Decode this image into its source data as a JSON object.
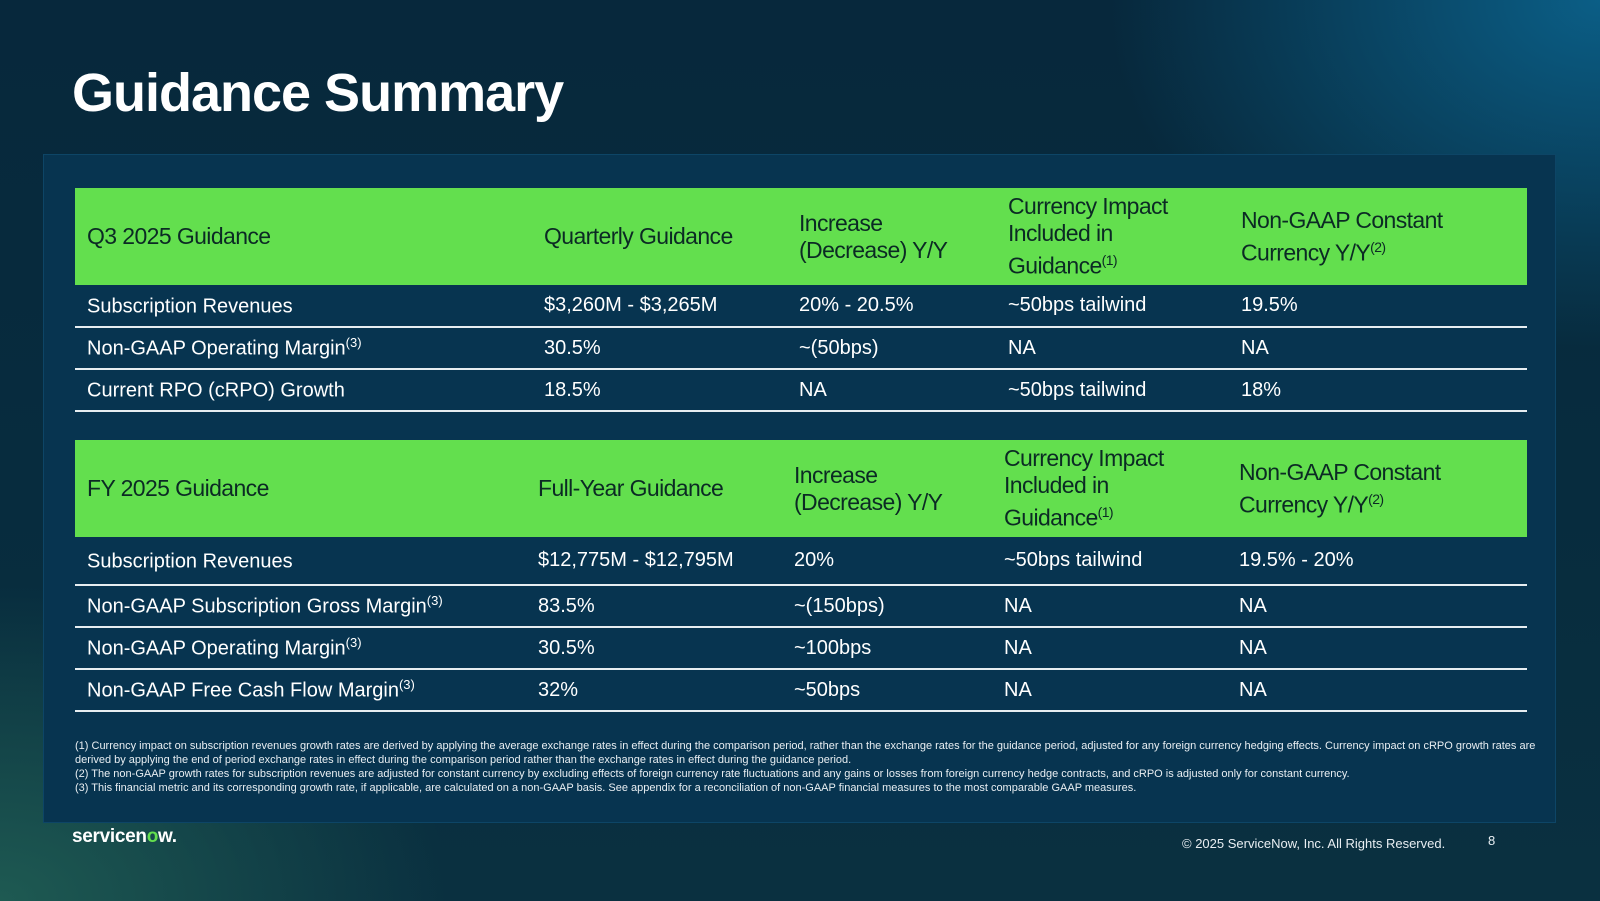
{
  "page": {
    "title": "Guidance Summary",
    "copyright": "© 2025 ServiceNow, Inc. All Rights Reserved.",
    "page_number": "8",
    "logo": {
      "pre": "servicen",
      "accent": "o",
      "post": "w."
    }
  },
  "q3": {
    "headers": [
      "Q3 2025 Guidance",
      "Quarterly Guidance",
      "Increase (Decrease) Y/Y",
      "Currency Impact Included in Guidance",
      "Non-GAAP Constant Currency Y/Y"
    ],
    "header_sups": [
      "",
      "",
      "",
      "(1)",
      "(2)"
    ],
    "rows": [
      {
        "label": "Subscription Revenues",
        "sup": "",
        "values": [
          "$3,260M - $3,265M",
          "20% - 20.5%",
          "~50bps tailwind",
          "19.5%"
        ]
      },
      {
        "label": "Non-GAAP Operating Margin",
        "sup": "(3)",
        "values": [
          "30.5%",
          "~(50bps)",
          "NA",
          "NA"
        ]
      },
      {
        "label": "Current RPO (cRPO) Growth",
        "sup": "",
        "values": [
          "18.5%",
          "NA",
          "~50bps tailwind",
          "18%"
        ]
      }
    ]
  },
  "fy": {
    "headers": [
      "FY 2025 Guidance",
      "Full-Year Guidance",
      "Increase (Decrease) Y/Y",
      "Currency Impact Included in Guidance",
      "Non-GAAP Constant Currency Y/Y"
    ],
    "header_sups": [
      "",
      "",
      "",
      "(1)",
      "(2)"
    ],
    "rows": [
      {
        "label": "Subscription Revenues",
        "sup": "",
        "values": [
          "$12,775M - $12,795M",
          "20%",
          "~50bps tailwind",
          "19.5% - 20%"
        ]
      },
      {
        "label": "Non-GAAP Subscription Gross Margin",
        "sup": "(3)",
        "values": [
          "83.5%",
          "~(150bps)",
          "NA",
          "NA"
        ]
      },
      {
        "label": "Non-GAAP Operating Margin",
        "sup": "(3)",
        "values": [
          "30.5%",
          "~100bps",
          "NA",
          "NA"
        ]
      },
      {
        "label": "Non-GAAP Free Cash Flow Margin",
        "sup": "(3)",
        "values": [
          "32%",
          "~50bps",
          "NA",
          "NA"
        ]
      }
    ]
  },
  "footnotes": [
    "(1) Currency impact on subscription revenues growth rates are derived by applying the average exchange rates in effect during the comparison period, rather than the exchange rates for the guidance period, adjusted for any foreign currency hedging effects. Currency impact on cRPO growth rates are derived by applying the end of period exchange rates in effect during the comparison period rather than the exchange rates in effect during the guidance period.",
    "(2) The non-GAAP growth rates for subscription revenues are adjusted for constant currency by excluding effects of foreign currency rate fluctuations and any gains or losses from foreign currency hedge contracts, and cRPO is adjusted only for constant currency.",
    "(3) This financial metric and its corresponding growth rate, if applicable, are calculated on a non-GAAP basis. See appendix for a reconciliation of non-GAAP financial measures to the most comparable GAAP measures."
  ]
}
